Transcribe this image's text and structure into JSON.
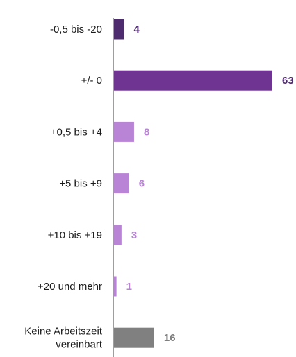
{
  "chart_data": {
    "type": "bar",
    "orientation": "horizontal",
    "title": "",
    "xlabel": "",
    "ylabel": "",
    "xlim": [
      0,
      63
    ],
    "grid": false,
    "legend": "none",
    "categories": [
      [
        "-0,5 bis -20"
      ],
      [
        "+/- 0"
      ],
      [
        "+0,5 bis +4"
      ],
      [
        "+5 bis +9"
      ],
      [
        "+10 bis +19"
      ],
      [
        "+20 und mehr"
      ],
      [
        "Keine Arbeitszeit",
        "vereinbart"
      ]
    ],
    "values": [
      4,
      63,
      8,
      6,
      3,
      1,
      16
    ],
    "bar_colors": [
      "#4e2a6e",
      "#6f3391",
      "#b983d6",
      "#b983d6",
      "#b983d6",
      "#b983d6",
      "#808080"
    ],
    "label_colors": [
      "#4e2a6e",
      "#4e2a6e",
      "#b983d6",
      "#b983d6",
      "#b983d6",
      "#b983d6",
      "#808080"
    ],
    "axis_color": "#7f7f7f"
  }
}
